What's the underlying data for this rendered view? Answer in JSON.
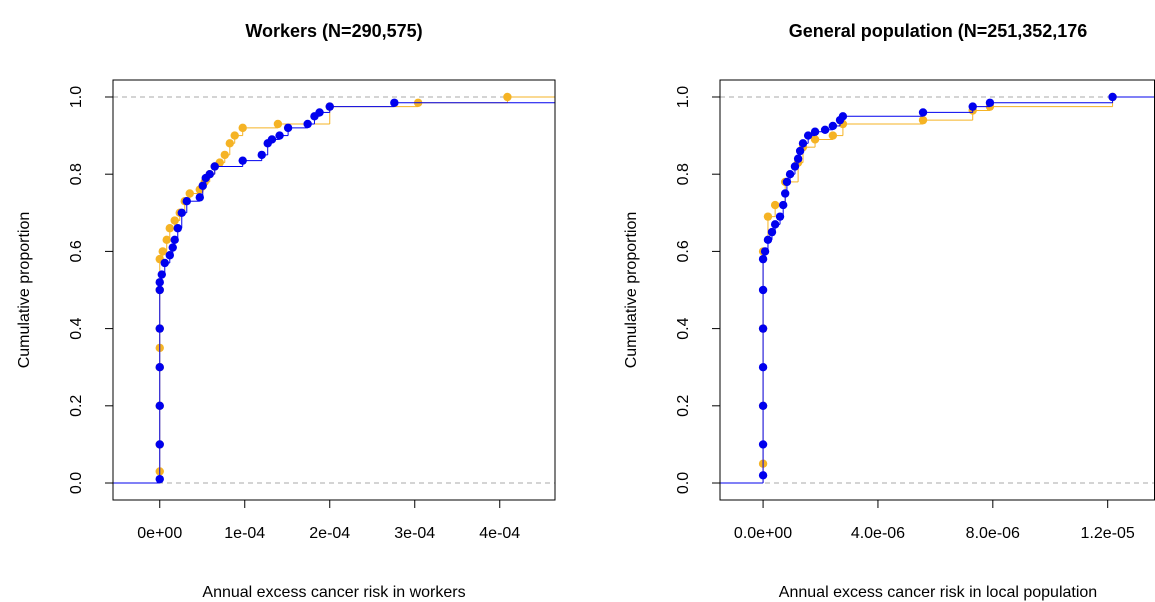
{
  "chart_data": [
    {
      "type": "step",
      "title": "Workers (N=290,575)",
      "xlabel": "Annual excess cancer risk in workers",
      "ylabel": "Cumulative proportion",
      "xlim": [
        -5.5e-05,
        0.000465
      ],
      "ylim": [
        -0.044,
        1.044
      ],
      "xticks": [
        {
          "value": 0,
          "label": "0e+00"
        },
        {
          "value": 0.0001,
          "label": "1e-04"
        },
        {
          "value": 0.0002,
          "label": "2e-04"
        },
        {
          "value": 0.0003,
          "label": "3e-04"
        },
        {
          "value": 0.0004,
          "label": "4e-04"
        }
      ],
      "yticks": [
        {
          "value": 0,
          "label": "0.0"
        },
        0.2,
        0.4,
        0.6,
        0.8,
        {
          "value": 1,
          "label": "1.0"
        }
      ],
      "hlines": [
        0,
        1
      ],
      "series": [
        {
          "color": "#f5b324",
          "x": [
            0,
            0,
            0,
            0,
            0,
            0,
            0,
            0,
            3.5e-06,
            8.2e-06,
            1.18e-05,
            1.76e-05,
            2.35e-05,
            2.94e-05,
            3.53e-05,
            4.71e-05,
            5.29e-05,
            5.88e-05,
            6.47e-05,
            7.06e-05,
            7.65e-05,
            8.24e-05,
            8.82e-05,
            9.76e-05,
            0.000139,
            0.0002,
            0.000304,
            0.000409
          ],
          "values": [
            0.03,
            0.1,
            0.2,
            0.3,
            0.35,
            0.4,
            0.5,
            0.58,
            0.6,
            0.63,
            0.66,
            0.68,
            0.7,
            0.73,
            0.75,
            0.76,
            0.78,
            0.8,
            0.82,
            0.83,
            0.85,
            0.88,
            0.9,
            0.92,
            0.93,
            0.975,
            0.985,
            1.0
          ]
        },
        {
          "color": "#0000ee",
          "x": [
            0,
            0,
            0,
            0,
            0,
            0,
            0,
            2.4e-06,
            5.9e-06,
            1.18e-05,
            1.53e-05,
            1.76e-05,
            2.12e-05,
            2.59e-05,
            3.18e-05,
            4.71e-05,
            5.06e-05,
            5.41e-05,
            5.88e-05,
            6.47e-05,
            9.76e-05,
            0.00012,
            0.000127,
            0.000132,
            0.000141,
            0.000151,
            0.000174,
            0.000182,
            0.000188,
            0.0002,
            0.000276
          ],
          "values": [
            0.01,
            0.1,
            0.2,
            0.3,
            0.4,
            0.5,
            0.52,
            0.54,
            0.57,
            0.59,
            0.61,
            0.63,
            0.66,
            0.7,
            0.73,
            0.74,
            0.77,
            0.79,
            0.8,
            0.82,
            0.835,
            0.85,
            0.88,
            0.89,
            0.9,
            0.92,
            0.93,
            0.95,
            0.96,
            0.975,
            0.985
          ]
        }
      ]
    },
    {
      "type": "step",
      "title": "General population (N=251,352,176",
      "xlabel": "Annual excess cancer risk in local population",
      "ylabel": "Cumulative proportion",
      "xlim": [
        -1.5e-06,
        1.363e-05
      ],
      "ylim": [
        -0.044,
        1.044
      ],
      "xticks": [
        {
          "value": 0,
          "label": "0.0e+00"
        },
        {
          "value": 4e-06,
          "label": "4.0e-06"
        },
        {
          "value": 8e-06,
          "label": "8.0e-06"
        },
        {
          "value": 1.2e-05,
          "label": "1.2e-05"
        }
      ],
      "yticks": [
        {
          "value": 0,
          "label": "0.0"
        },
        0.2,
        0.4,
        0.6,
        0.8,
        {
          "value": 1,
          "label": "1.0"
        }
      ],
      "hlines": [
        0,
        1
      ],
      "series": [
        {
          "color": "#f5b324",
          "x": [
            0,
            0,
            0,
            0,
            1.7e-07,
            4.2e-07,
            7.7e-07,
            1.22e-06,
            1.39e-06,
            1.81e-06,
            2.43e-06,
            2.78e-06,
            5.57e-06,
            7.3e-06,
            7.9e-06,
            1.217e-05
          ],
          "values": [
            0.05,
            0.2,
            0.4,
            0.6,
            0.69,
            0.72,
            0.78,
            0.83,
            0.87,
            0.89,
            0.9,
            0.93,
            0.94,
            0.965,
            0.975,
            1.0
          ]
        },
        {
          "color": "#0000ee",
          "x": [
            0,
            0,
            0,
            0,
            0,
            0,
            0,
            7e-08,
            1.7e-07,
            3.1e-07,
            4.2e-07,
            5.9e-07,
            7e-07,
            7.7e-07,
            8.3e-07,
            9.4e-07,
            1.11e-06,
            1.22e-06,
            1.29e-06,
            1.39e-06,
            1.57e-06,
            1.81e-06,
            2.16e-06,
            2.43e-06,
            2.68e-06,
            2.78e-06,
            5.57e-06,
            7.3e-06,
            7.9e-06,
            1.217e-05
          ],
          "values": [
            0.02,
            0.1,
            0.2,
            0.3,
            0.4,
            0.5,
            0.58,
            0.6,
            0.63,
            0.65,
            0.67,
            0.69,
            0.72,
            0.75,
            0.78,
            0.8,
            0.82,
            0.84,
            0.86,
            0.88,
            0.9,
            0.91,
            0.915,
            0.925,
            0.94,
            0.95,
            0.96,
            0.975,
            0.985,
            1.0
          ]
        }
      ]
    }
  ]
}
